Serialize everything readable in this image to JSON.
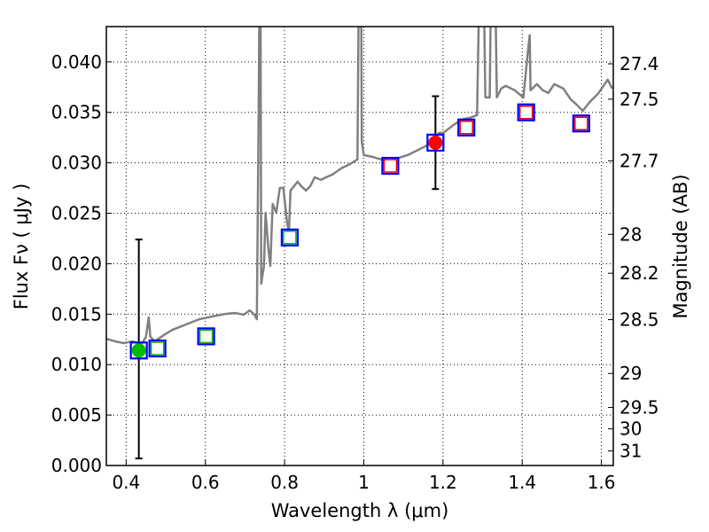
{
  "chart_data": {
    "type": "line",
    "xlabel": "Wavelength  λ (μm)",
    "ylabel": "Flux  Fν ( μJy )",
    "ylabel_right": "Magnitude (AB)",
    "xlim": [
      0.35,
      1.63
    ],
    "ylim": [
      0.0,
      0.0435
    ],
    "grid": true,
    "xticks": [
      0.4,
      0.6,
      0.8,
      1.0,
      1.2,
      1.4,
      1.6
    ],
    "xtick_labels": [
      "0.4",
      "0.6",
      "0.8",
      "1",
      "1.2",
      "1.4",
      "1.6"
    ],
    "yticks": [
      0,
      0.005,
      0.01,
      0.015,
      0.02,
      0.025,
      0.03,
      0.035,
      0.04
    ],
    "ytick_labels": [
      "0.000",
      "0.005",
      "0.010",
      "0.015",
      "0.020",
      "0.025",
      "0.030",
      "0.035",
      "0.040"
    ],
    "right_ticks": [
      27.4,
      27.5,
      27.7,
      28,
      28.2,
      28.5,
      29,
      29.5,
      30,
      31
    ],
    "right_tick_labels": [
      "27.4",
      "27.5",
      "27.7",
      "28",
      "28.2",
      "28.5",
      "29",
      "29.5",
      "30",
      "31"
    ],
    "spectrum": {
      "color": "#808080",
      "x": [
        0.349,
        0.372,
        0.394,
        0.416,
        0.439,
        0.45,
        0.457,
        0.461,
        0.472,
        0.495,
        0.517,
        0.54,
        0.562,
        0.585,
        0.607,
        0.629,
        0.652,
        0.674,
        0.697,
        0.712,
        0.724,
        0.73,
        0.735,
        0.737,
        0.739,
        0.741,
        0.748,
        0.752,
        0.759,
        0.764,
        0.77,
        0.779,
        0.788,
        0.797,
        0.806,
        0.811,
        0.815,
        0.824,
        0.833,
        0.842,
        0.854,
        0.865,
        0.876,
        0.892,
        0.905,
        0.921,
        0.943,
        0.966,
        0.984,
        0.988,
        0.993,
        0.995,
        1.0,
        1.022,
        1.044,
        1.067,
        1.089,
        1.111,
        1.134,
        1.156,
        1.174,
        1.19,
        1.201,
        1.224,
        1.246,
        1.268,
        1.286,
        1.293,
        1.302,
        1.307,
        1.318,
        1.322,
        1.331,
        1.336,
        1.347,
        1.358,
        1.381,
        1.403,
        1.414,
        1.419,
        1.421,
        1.437,
        1.452,
        1.466,
        1.481,
        1.504,
        1.522,
        1.537,
        1.553,
        1.571,
        1.593,
        1.616,
        1.627
      ],
      "y": [
        0.01257,
        0.01231,
        0.01213,
        0.01231,
        0.01204,
        0.01275,
        0.01468,
        0.01275,
        0.01231,
        0.01292,
        0.01345,
        0.0138,
        0.01415,
        0.0145,
        0.01468,
        0.01486,
        0.01503,
        0.01512,
        0.01495,
        0.01538,
        0.01495,
        0.0145,
        0.03736,
        0.05,
        0.05,
        0.01802,
        0.01978,
        0.02505,
        0.02154,
        0.01978,
        0.02593,
        0.02505,
        0.02752,
        0.02752,
        0.02418,
        0.02312,
        0.02725,
        0.02769,
        0.02813,
        0.02769,
        0.02725,
        0.02769,
        0.02857,
        0.02831,
        0.02857,
        0.02884,
        0.02945,
        0.02989,
        0.03033,
        0.05,
        0.05,
        0.03209,
        0.03077,
        0.03059,
        0.03033,
        0.03024,
        0.0305,
        0.03077,
        0.03121,
        0.03165,
        0.03209,
        0.03297,
        0.03297,
        0.03367,
        0.03429,
        0.03446,
        0.03473,
        0.05,
        0.05,
        0.03648,
        0.03648,
        0.05,
        0.05,
        0.03648,
        0.03736,
        0.03763,
        0.03719,
        0.03648,
        0.04088,
        0.04264,
        0.03719,
        0.0378,
        0.03719,
        0.03692,
        0.0378,
        0.03736,
        0.03631,
        0.03578,
        0.03516,
        0.03604,
        0.03692,
        0.03824,
        0.03736
      ]
    },
    "photometry_points": [
      {
        "x": 0.432,
        "y": 0.0114,
        "color": "#00bb00",
        "err": [
          0.0007,
          0.0224
        ]
      },
      {
        "x": 1.181,
        "y": 0.032,
        "color": "#ff0000",
        "err": [
          0.0274,
          0.0366
        ]
      }
    ],
    "model_boxes": [
      {
        "x": 0.432,
        "y": 0.0114,
        "inner": null
      },
      {
        "x": 0.479,
        "y": 0.0116,
        "inner": "#00bb00"
      },
      {
        "x": 0.602,
        "y": 0.0128,
        "inner": "#00bb00"
      },
      {
        "x": 0.813,
        "y": 0.0226,
        "inner": "#00bb00"
      },
      {
        "x": 1.067,
        "y": 0.0297,
        "inner": "#ff0000"
      },
      {
        "x": 1.181,
        "y": 0.032,
        "inner": null
      },
      {
        "x": 1.259,
        "y": 0.0335,
        "inner": "#ff0000"
      },
      {
        "x": 1.41,
        "y": 0.035,
        "inner": "#ff0000"
      },
      {
        "x": 1.549,
        "y": 0.0339,
        "inner": "#ff0000"
      }
    ],
    "box_color": "#0000ff"
  }
}
